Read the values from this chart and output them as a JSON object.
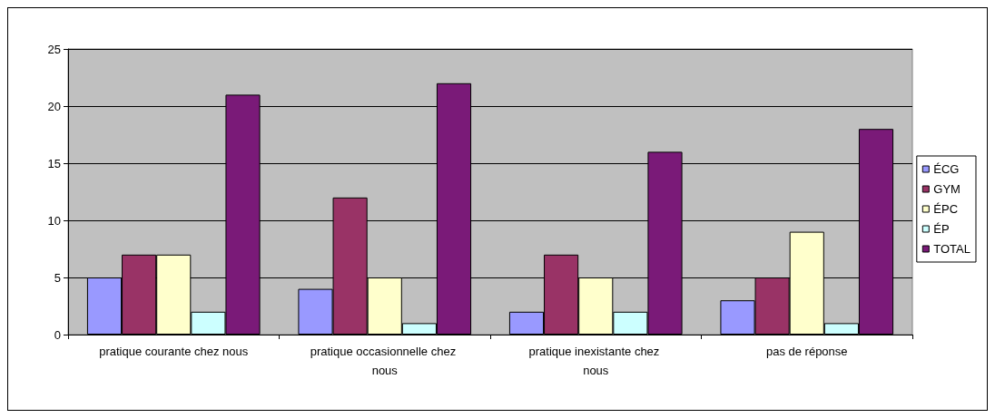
{
  "chart_data": {
    "type": "bar",
    "categories": [
      "pratique courante chez nous",
      "pratique occasionnelle chez nous",
      "pratique inexistante chez nous",
      "pas de réponse"
    ],
    "series": [
      {
        "name": "ÉCG",
        "color": "#9999ff",
        "values": [
          5,
          4,
          2,
          3
        ]
      },
      {
        "name": "GYM",
        "color": "#993366",
        "values": [
          7,
          12,
          7,
          5
        ]
      },
      {
        "name": "ÉPC",
        "color": "#ffffcc",
        "values": [
          7,
          5,
          5,
          9
        ]
      },
      {
        "name": "ÉP",
        "color": "#ccffff",
        "values": [
          2,
          1,
          2,
          1
        ]
      },
      {
        "name": "TOTAL",
        "color": "#7a1a78",
        "values": [
          21,
          22,
          16,
          18
        ]
      }
    ],
    "ylim": [
      0,
      25
    ],
    "yticks": [
      0,
      5,
      10,
      15,
      20,
      25
    ],
    "grid": "y",
    "legend": "right"
  }
}
